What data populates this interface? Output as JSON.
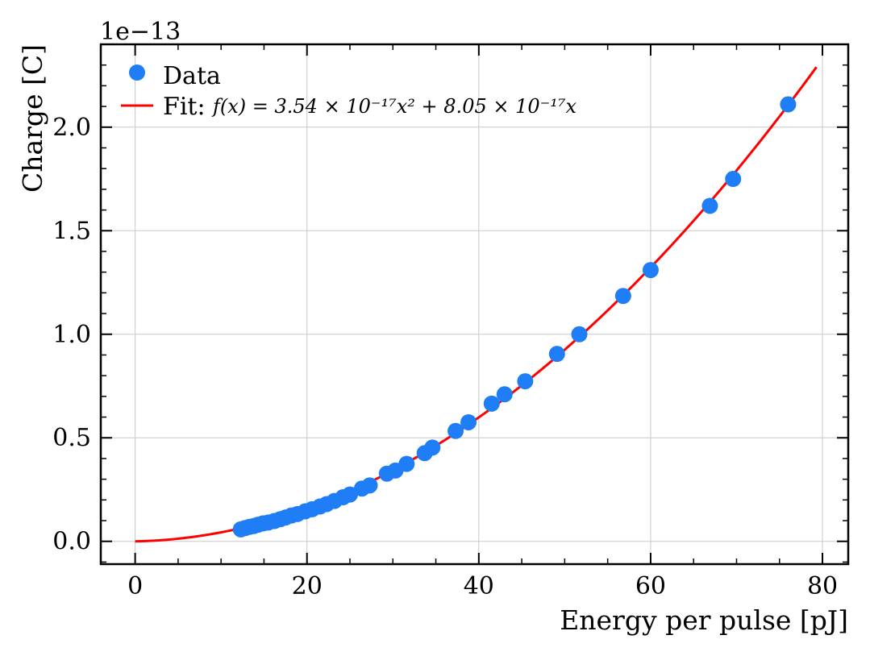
{
  "chart_data": {
    "type": "scatter",
    "title": "",
    "xlabel": "Energy per pulse [pJ]",
    "ylabel": "Charge [C]",
    "y_offset_label": "1e−13",
    "xlim": [
      -4,
      83
    ],
    "ylim": [
      -0.11,
      2.4
    ],
    "xticks": [
      0,
      20,
      40,
      60,
      80
    ],
    "xtick_labels": [
      "0",
      "20",
      "40",
      "60",
      "80"
    ],
    "yticks": [
      0.0,
      0.5,
      1.0,
      1.5,
      2.0
    ],
    "ytick_labels": [
      "0.0",
      "0.5",
      "1.0",
      "1.5",
      "2.0"
    ],
    "grid": true,
    "legend_position": "top-left",
    "series": [
      {
        "name": "Data",
        "kind": "scatter",
        "color": "#1f7ef5",
        "x": [
          12.3,
          12.8,
          13.3,
          13.8,
          14.3,
          14.9,
          15.5,
          16.2,
          16.9,
          17.5,
          18.2,
          18.9,
          19.8,
          20.6,
          21.5,
          22.3,
          23.2,
          24.2,
          25.0,
          26.4,
          27.3,
          29.3,
          30.3,
          31.6,
          33.7,
          34.6,
          37.3,
          38.8,
          41.5,
          43.0,
          45.4,
          49.1,
          51.7,
          56.8,
          60.0,
          66.9,
          69.6,
          76.0
        ],
        "y": [
          0.058,
          0.064,
          0.07,
          0.074,
          0.08,
          0.087,
          0.091,
          0.098,
          0.107,
          0.115,
          0.125,
          0.132,
          0.145,
          0.155,
          0.168,
          0.18,
          0.195,
          0.213,
          0.226,
          0.255,
          0.27,
          0.327,
          0.342,
          0.374,
          0.426,
          0.453,
          0.533,
          0.575,
          0.665,
          0.71,
          0.773,
          0.905,
          1.0,
          1.185,
          1.31,
          1.62,
          1.75,
          2.11
        ]
      },
      {
        "name": "Fit:",
        "kind": "line",
        "color": "#ff0000",
        "formula": "f(x) = 3.54 × 10⁻¹⁷x² + 8.05 × 10⁻¹⁷x",
        "coefficients": {
          "a": 0.000354,
          "b": 0.000805
        },
        "x_range": [
          0,
          79.3
        ]
      }
    ]
  }
}
